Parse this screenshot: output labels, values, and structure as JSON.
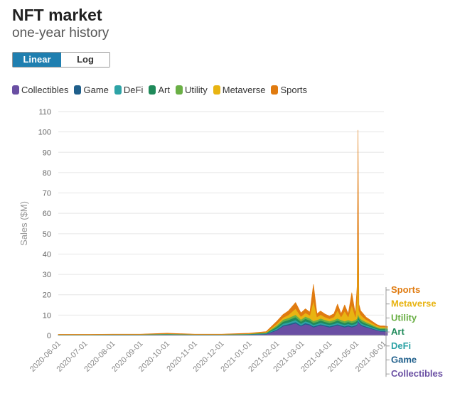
{
  "header": {
    "title": "NFT market",
    "subtitle": "one-year history"
  },
  "scale_toggle": {
    "linear_label": "Linear",
    "log_label": "Log",
    "selected": "Linear"
  },
  "colors": {
    "Collectibles": "#6a4fa3",
    "Game": "#1f5f8b",
    "DeFi": "#2ea3a6",
    "Art": "#1f8a5a",
    "Utility": "#6aaf45",
    "Metaverse": "#e8b412",
    "Sports": "#e07b10"
  },
  "legend": [
    "Collectibles",
    "Game",
    "DeFi",
    "Art",
    "Utility",
    "Metaverse",
    "Sports"
  ],
  "end_labels": [
    "Sports",
    "Metaverse",
    "Utility",
    "Art",
    "DeFi",
    "Game",
    "Collectibles"
  ],
  "chart_data": {
    "type": "area",
    "stacked": true,
    "title": "",
    "xlabel": "",
    "ylabel": "Sales ($M)",
    "ylim": [
      0,
      110
    ],
    "yticks": [
      0,
      10,
      20,
      30,
      40,
      50,
      60,
      70,
      80,
      90,
      100,
      110
    ],
    "xticks": [
      "2020-06-01",
      "2020-07-01",
      "2020-08-01",
      "2020-09-01",
      "2020-10-01",
      "2020-11-01",
      "2020-12-01",
      "2021-01-01",
      "2021-02-01",
      "2021-03-01",
      "2021-04-01",
      "2021-05-01",
      "2021-06-01"
    ],
    "grid": true,
    "legend_position": "top",
    "x": [
      "2020-06-01",
      "2020-07-01",
      "2020-08-01",
      "2020-09-01",
      "2020-10-01",
      "2020-11-01",
      "2020-12-01",
      "2021-01-01",
      "2021-01-20",
      "2021-02-01",
      "2021-02-08",
      "2021-02-14",
      "2021-02-22",
      "2021-02-28",
      "2021-03-05",
      "2021-03-10",
      "2021-03-14",
      "2021-03-18",
      "2021-03-22",
      "2021-03-27",
      "2021-04-01",
      "2021-04-06",
      "2021-04-10",
      "2021-04-14",
      "2021-04-18",
      "2021-04-22",
      "2021-04-26",
      "2021-04-30",
      "2021-05-02",
      "2021-05-03",
      "2021-05-04",
      "2021-05-06",
      "2021-05-08",
      "2021-05-12",
      "2021-05-16",
      "2021-05-20",
      "2021-05-24",
      "2021-05-28",
      "2021-06-01",
      "2021-06-05"
    ],
    "series": [
      {
        "name": "Collectibles",
        "values": [
          0.2,
          0.2,
          0.3,
          0.3,
          0.4,
          0.3,
          0.3,
          0.4,
          0.6,
          2.5,
          4.5,
          5.0,
          6.0,
          4.5,
          5.5,
          5.0,
          4.0,
          4.5,
          5.0,
          4.5,
          4.0,
          4.5,
          5.0,
          4.5,
          4.0,
          4.5,
          4.0,
          4.5,
          5.0,
          7.0,
          6.0,
          5.0,
          4.5,
          4.0,
          3.5,
          3.0,
          2.5,
          2.0,
          2.0,
          1.8
        ]
      },
      {
        "name": "Game",
        "values": [
          0.05,
          0.05,
          0.05,
          0.05,
          0.1,
          0.05,
          0.05,
          0.1,
          0.2,
          0.4,
          0.5,
          0.6,
          0.6,
          0.5,
          0.6,
          0.5,
          0.5,
          0.5,
          0.5,
          0.5,
          0.5,
          0.5,
          0.5,
          0.5,
          0.5,
          0.5,
          0.5,
          0.5,
          0.5,
          0.6,
          0.5,
          0.5,
          0.5,
          0.4,
          0.4,
          0.3,
          0.3,
          0.3,
          0.3,
          0.3
        ]
      },
      {
        "name": "DeFi",
        "values": [
          0.05,
          0.05,
          0.05,
          0.05,
          0.1,
          0.05,
          0.05,
          0.1,
          0.2,
          0.6,
          0.8,
          0.8,
          1.0,
          0.8,
          0.9,
          0.8,
          0.7,
          0.7,
          0.8,
          0.7,
          0.7,
          0.7,
          0.8,
          0.7,
          0.7,
          0.7,
          0.7,
          0.7,
          0.8,
          0.9,
          0.8,
          0.7,
          0.7,
          0.6,
          0.5,
          0.5,
          0.4,
          0.4,
          0.4,
          0.4
        ]
      },
      {
        "name": "Art",
        "values": [
          0.05,
          0.05,
          0.05,
          0.05,
          0.1,
          0.05,
          0.05,
          0.1,
          0.2,
          0.8,
          1.0,
          1.2,
          1.4,
          1.0,
          1.2,
          1.1,
          1.0,
          1.0,
          1.1,
          1.0,
          0.9,
          1.0,
          1.1,
          1.0,
          0.9,
          1.0,
          0.9,
          1.0,
          1.0,
          1.2,
          1.0,
          1.0,
          0.9,
          0.8,
          0.7,
          0.6,
          0.5,
          0.5,
          0.5,
          0.5
        ]
      },
      {
        "name": "Utility",
        "values": [
          0.05,
          0.05,
          0.05,
          0.05,
          0.1,
          0.05,
          0.05,
          0.1,
          0.2,
          0.7,
          1.0,
          1.0,
          1.2,
          1.0,
          1.1,
          1.0,
          0.9,
          0.9,
          1.0,
          0.9,
          0.9,
          0.9,
          1.0,
          0.9,
          0.9,
          0.9,
          0.9,
          0.9,
          1.0,
          1.2,
          1.0,
          0.9,
          0.9,
          0.8,
          0.7,
          0.6,
          0.5,
          0.5,
          0.5,
          0.5
        ]
      },
      {
        "name": "Metaverse",
        "values": [
          0.05,
          0.05,
          0.05,
          0.05,
          0.1,
          0.05,
          0.05,
          0.1,
          0.2,
          0.8,
          1.0,
          1.5,
          3.0,
          1.5,
          1.8,
          1.5,
          10.0,
          1.5,
          1.8,
          1.4,
          1.2,
          1.5,
          4.0,
          1.5,
          5.0,
          1.5,
          8.0,
          1.5,
          10.0,
          50.0,
          3.0,
          2.0,
          1.8,
          1.2,
          1.0,
          0.8,
          0.6,
          0.5,
          0.5,
          0.5
        ]
      },
      {
        "name": "Sports",
        "values": [
          0.1,
          0.1,
          0.1,
          0.1,
          0.2,
          0.1,
          0.1,
          0.2,
          0.3,
          1.2,
          1.5,
          2.0,
          3.0,
          1.8,
          2.0,
          1.6,
          8.0,
          1.6,
          1.8,
          1.5,
          1.3,
          1.6,
          3.0,
          1.6,
          3.0,
          1.6,
          6.0,
          1.6,
          6.0,
          40.0,
          3.0,
          2.0,
          1.8,
          1.2,
          1.0,
          0.8,
          0.6,
          0.5,
          0.5,
          0.5
        ]
      }
    ]
  }
}
